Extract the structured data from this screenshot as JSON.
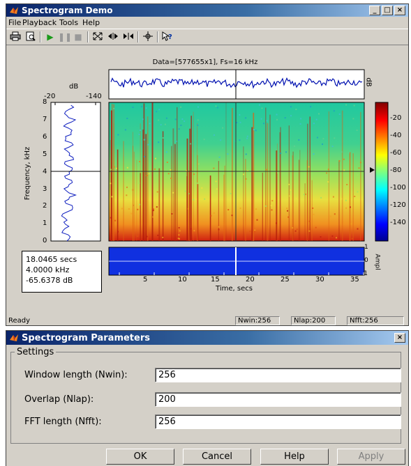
{
  "main_window": {
    "title": "Spectrogram Demo",
    "controls": {
      "minimize": "_",
      "maximize": "□",
      "close": "×"
    },
    "menu": [
      "File",
      "Playback",
      "Tools",
      "Help"
    ],
    "toolbar_icons": [
      "print-icon",
      "print-preview-icon",
      "play-icon",
      "pause-icon",
      "stop-icon",
      "zoom-full-icon",
      "zoom-in-time-icon",
      "zoom-out-time-icon",
      "crosshair-icon",
      "whats-this-icon"
    ],
    "toolbar_glyphs": [
      "⎙",
      "🗋",
      "▶",
      "⏸",
      "■",
      "⤧",
      "⇤⇥",
      "⇥⇤",
      "✛",
      "⁈?"
    ],
    "status": {
      "left": "Ready",
      "nwin": "Nwin:256",
      "nlap": "Nlap:200",
      "nfft": "Nfft:256"
    }
  },
  "plot": {
    "title": "Data=[577655x1], Fs=16 kHz",
    "left_panel": {
      "label": "dB",
      "ticks_top": [
        "-20",
        "-140"
      ]
    },
    "ylabel": "Frequency, kHz",
    "yticks": [
      "8",
      "7",
      "6",
      "5",
      "4",
      "3",
      "2",
      "1",
      "0"
    ],
    "top_label": "dB",
    "colorbar_ticks": [
      "-20",
      "-40",
      "-60",
      "-80",
      "-100",
      "-120",
      "-140"
    ],
    "xlabel": "Time, secs",
    "xticks": [
      "5",
      "10",
      "15",
      "20",
      "25",
      "30",
      "35"
    ],
    "ampl_label": "Ampl",
    "ampl_ticks": [
      "1",
      "0",
      "-1"
    ],
    "readout": {
      "time": "18.0465 secs",
      "freq": "4.0000 kHz",
      "level": "-65.6378 dB"
    },
    "colors": {
      "low": "#0000a0",
      "mid": "#00c0c0",
      "high": "#e02000",
      "trace": "#0000c0"
    }
  },
  "params_dialog": {
    "title": "Spectrogram Parameters",
    "close": "×",
    "group_label": "Settings",
    "fields": [
      {
        "label": "Window length (Nwin):",
        "value": "256"
      },
      {
        "label": "Overlap (Nlap):",
        "value": "200"
      },
      {
        "label": "FFT length (Nfft):",
        "value": "256"
      }
    ],
    "buttons": {
      "ok": "OK",
      "cancel": "Cancel",
      "help": "Help",
      "apply": "Apply"
    }
  }
}
